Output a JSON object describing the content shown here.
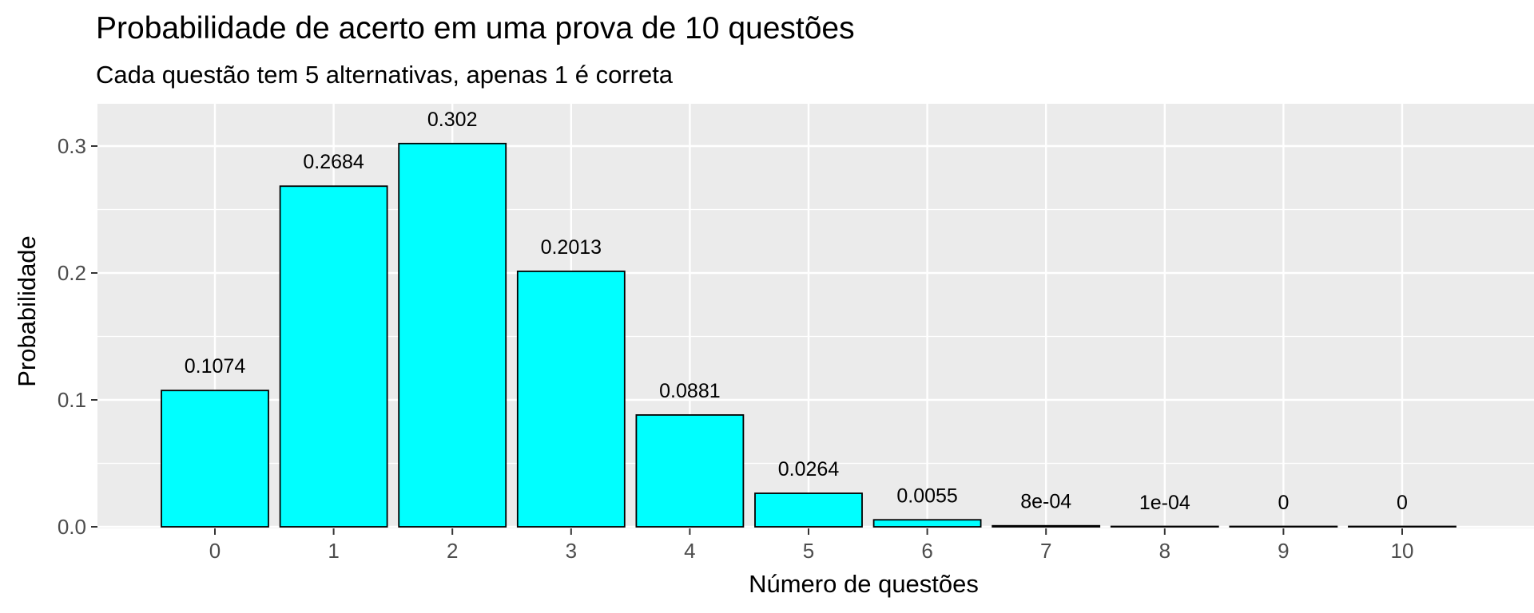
{
  "chart_data": {
    "type": "bar",
    "title": "Probabilidade de acerto em uma prova de 10 questões",
    "subtitle": "Cada questão tem 5 alternativas, apenas 1 é correta",
    "xlabel": "Número de questões",
    "ylabel": "Probabilidade",
    "categories": [
      "0",
      "1",
      "2",
      "3",
      "4",
      "5",
      "6",
      "7",
      "8",
      "9",
      "10"
    ],
    "values": [
      0.1074,
      0.2684,
      0.302,
      0.2013,
      0.0881,
      0.0264,
      0.0055,
      0.0008,
      0.0001,
      0.0,
      0.0
    ],
    "value_labels": [
      "0.1074",
      "0.2684",
      "0.302",
      "0.2013",
      "0.0881",
      "0.0264",
      "0.0055",
      "8e-04",
      "1e-04",
      "0",
      "0"
    ],
    "ylim": [
      0,
      0.32
    ],
    "yticks": [
      0.0,
      0.1,
      0.2,
      0.3
    ],
    "ytick_labels": [
      "0.0",
      "0.1",
      "0.2",
      "0.3"
    ],
    "grid": true,
    "legend": "none",
    "colors": {
      "bar_fill": "#00FFFF",
      "bar_stroke": "#000000",
      "panel_bg": "#EBEBEB",
      "grid": "#FFFFFF",
      "axis_text": "#4D4D4D"
    }
  }
}
